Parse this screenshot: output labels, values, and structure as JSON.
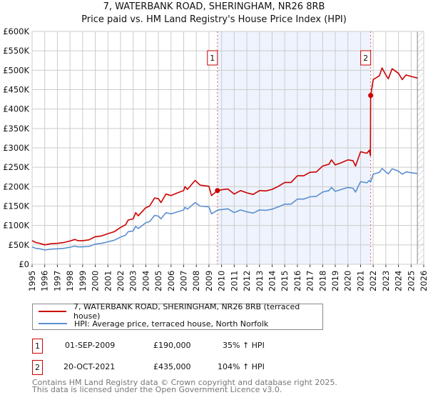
{
  "title": "7, WATERBANK ROAD, SHERINGHAM, NR26 8RB",
  "subtitle": "Price paid vs. HM Land Registry's House Price Index (HPI)",
  "legend": [
    {
      "label": "7, WATERBANK ROAD, SHERINGHAM, NR26 8RB (terraced house)",
      "color": "#cc0000"
    },
    {
      "label": "HPI: Average price, terraced house, North Norfolk",
      "color": "#5b8fd0"
    }
  ],
  "sales": [
    {
      "num": "1",
      "date": "01-SEP-2009",
      "price": "£190,000",
      "hpi": "35% ↑ HPI"
    },
    {
      "num": "2",
      "date": "20-OCT-2021",
      "price": "£435,000",
      "hpi": "104% ↑ HPI"
    }
  ],
  "footer": [
    "Contains HM Land Registry data © Crown copyright and database right 2025.",
    "This data is licensed under the Open Government Licence v3.0."
  ],
  "chart_data": {
    "type": "line",
    "title": "7, WATERBANK ROAD, SHERINGHAM, NR26 8RB",
    "xlim": [
      1995,
      2026
    ],
    "ylim": [
      0,
      600000
    ],
    "x_ticks": [
      "1995",
      "1996",
      "1997",
      "1998",
      "1999",
      "2000",
      "2001",
      "2002",
      "2003",
      "2004",
      "2005",
      "2006",
      "2007",
      "2008",
      "2009",
      "2010",
      "2011",
      "2012",
      "2013",
      "2014",
      "2015",
      "2016",
      "2017",
      "2018",
      "2019",
      "2020",
      "2021",
      "2022",
      "2023",
      "2024",
      "2025",
      "2026"
    ],
    "y_ticks": [
      {
        "value": 0,
        "label": "£0"
      },
      {
        "value": 50000,
        "label": "£50K"
      },
      {
        "value": 100000,
        "label": "£100K"
      },
      {
        "value": 150000,
        "label": "£150K"
      },
      {
        "value": 200000,
        "label": "£200K"
      },
      {
        "value": 250000,
        "label": "£250K"
      },
      {
        "value": 300000,
        "label": "£300K"
      },
      {
        "value": 350000,
        "label": "£350K"
      },
      {
        "value": 400000,
        "label": "£400K"
      },
      {
        "value": 450000,
        "label": "£450K"
      },
      {
        "value": 500000,
        "label": "£500K"
      },
      {
        "value": 550000,
        "label": "£550K"
      },
      {
        "value": 600000,
        "label": "£600K"
      }
    ],
    "grid": true,
    "shaded_range": [
      2009.67,
      2021.8
    ],
    "forecast_hatch_from": 2025.5,
    "markers": [
      {
        "label": "1",
        "x": 2009.67,
        "y": 190000
      },
      {
        "label": "2",
        "x": 2021.8,
        "y": 435000
      }
    ],
    "series": [
      {
        "name": "property",
        "color": "#cc0000",
        "points": [
          [
            1995,
            61
          ],
          [
            1995.3,
            56
          ],
          [
            1995.6,
            54
          ],
          [
            1996,
            50
          ],
          [
            1996.5,
            53
          ],
          [
            1997,
            54
          ],
          [
            1997.5,
            56
          ],
          [
            1998,
            60
          ],
          [
            1998.4,
            64
          ],
          [
            1998.6,
            61
          ],
          [
            1999,
            61
          ],
          [
            1999.5,
            63
          ],
          [
            2000,
            71
          ],
          [
            2000.5,
            73
          ],
          [
            2001,
            79
          ],
          [
            2001.5,
            84
          ],
          [
            2002,
            95
          ],
          [
            2002.4,
            102
          ],
          [
            2002.6,
            114
          ],
          [
            2003,
            117
          ],
          [
            2003.2,
            133
          ],
          [
            2003.4,
            125
          ],
          [
            2004,
            146
          ],
          [
            2004.3,
            150
          ],
          [
            2004.7,
            171
          ],
          [
            2005,
            169
          ],
          [
            2005.2,
            159
          ],
          [
            2005.6,
            181
          ],
          [
            2006,
            177
          ],
          [
            2006.5,
            184
          ],
          [
            2007,
            190
          ],
          [
            2007.1,
            200
          ],
          [
            2007.3,
            193
          ],
          [
            2007.9,
            216
          ],
          [
            2008.3,
            204
          ],
          [
            2009,
            201
          ],
          [
            2009.2,
            177
          ],
          [
            2009.67,
            190
          ],
          [
            2010,
            192
          ],
          [
            2010.5,
            194
          ],
          [
            2011,
            181
          ],
          [
            2011.5,
            190
          ],
          [
            2012,
            184
          ],
          [
            2012.5,
            180
          ],
          [
            2013,
            190
          ],
          [
            2013.5,
            189
          ],
          [
            2014,
            193
          ],
          [
            2014.5,
            201
          ],
          [
            2015,
            211
          ],
          [
            2015.5,
            211
          ],
          [
            2016,
            228
          ],
          [
            2016.5,
            228
          ],
          [
            2017,
            237
          ],
          [
            2017.5,
            238
          ],
          [
            2018,
            253
          ],
          [
            2018.5,
            258
          ],
          [
            2018.7,
            269
          ],
          [
            2019,
            256
          ],
          [
            2019.5,
            262
          ],
          [
            2020,
            269
          ],
          [
            2020.4,
            267
          ],
          [
            2020.6,
            253
          ],
          [
            2021,
            290
          ],
          [
            2021.5,
            286
          ],
          [
            2021.7,
            294
          ],
          [
            2021.78,
            280
          ],
          [
            2021.8,
            435
          ],
          [
            2022,
            476
          ],
          [
            2022.5,
            486
          ],
          [
            2022.7,
            506
          ],
          [
            2023,
            488
          ],
          [
            2023.2,
            478
          ],
          [
            2023.5,
            504
          ],
          [
            2024,
            492
          ],
          [
            2024.3,
            476
          ],
          [
            2024.6,
            488
          ],
          [
            2025,
            484
          ],
          [
            2025.5,
            480
          ]
        ]
      },
      {
        "name": "hpi",
        "color": "#5b8fd0",
        "points": [
          [
            1995,
            45
          ],
          [
            1995.3,
            41
          ],
          [
            1995.6,
            40
          ],
          [
            1996,
            37
          ],
          [
            1996.5,
            39
          ],
          [
            1997,
            40
          ],
          [
            1997.5,
            41
          ],
          [
            1998,
            44
          ],
          [
            1998.4,
            47
          ],
          [
            1998.6,
            45
          ],
          [
            1999,
            45
          ],
          [
            1999.5,
            46
          ],
          [
            2000,
            52
          ],
          [
            2000.5,
            54
          ],
          [
            2001,
            58
          ],
          [
            2001.5,
            62
          ],
          [
            2002,
            70
          ],
          [
            2002.4,
            75
          ],
          [
            2002.6,
            84
          ],
          [
            2003,
            86
          ],
          [
            2003.2,
            98
          ],
          [
            2003.4,
            92
          ],
          [
            2004,
            107
          ],
          [
            2004.3,
            110
          ],
          [
            2004.7,
            126
          ],
          [
            2005,
            124
          ],
          [
            2005.2,
            117
          ],
          [
            2005.6,
            133
          ],
          [
            2006,
            130
          ],
          [
            2006.5,
            135
          ],
          [
            2007,
            140
          ],
          [
            2007.1,
            147
          ],
          [
            2007.3,
            142
          ],
          [
            2007.9,
            159
          ],
          [
            2008.3,
            150
          ],
          [
            2009,
            148
          ],
          [
            2009.2,
            130
          ],
          [
            2009.7,
            140
          ],
          [
            2010,
            141
          ],
          [
            2010.5,
            143
          ],
          [
            2011,
            133
          ],
          [
            2011.5,
            140
          ],
          [
            2012,
            135
          ],
          [
            2012.5,
            132
          ],
          [
            2013,
            140
          ],
          [
            2013.5,
            139
          ],
          [
            2014,
            142
          ],
          [
            2014.5,
            148
          ],
          [
            2015,
            155
          ],
          [
            2015.5,
            155
          ],
          [
            2016,
            168
          ],
          [
            2016.5,
            168
          ],
          [
            2017,
            174
          ],
          [
            2017.5,
            175
          ],
          [
            2018,
            186
          ],
          [
            2018.5,
            190
          ],
          [
            2018.7,
            198
          ],
          [
            2019,
            188
          ],
          [
            2019.5,
            193
          ],
          [
            2020,
            198
          ],
          [
            2020.4,
            196
          ],
          [
            2020.6,
            186
          ],
          [
            2021,
            213
          ],
          [
            2021.5,
            210
          ],
          [
            2021.7,
            216
          ],
          [
            2021.8,
            212
          ],
          [
            2022,
            232
          ],
          [
            2022.5,
            237
          ],
          [
            2022.7,
            247
          ],
          [
            2023,
            238
          ],
          [
            2023.2,
            233
          ],
          [
            2023.5,
            246
          ],
          [
            2024,
            240
          ],
          [
            2024.3,
            232
          ],
          [
            2024.6,
            238
          ],
          [
            2025,
            236
          ],
          [
            2025.5,
            234
          ]
        ]
      }
    ],
    "y_units": "thousands GBP for series points"
  }
}
